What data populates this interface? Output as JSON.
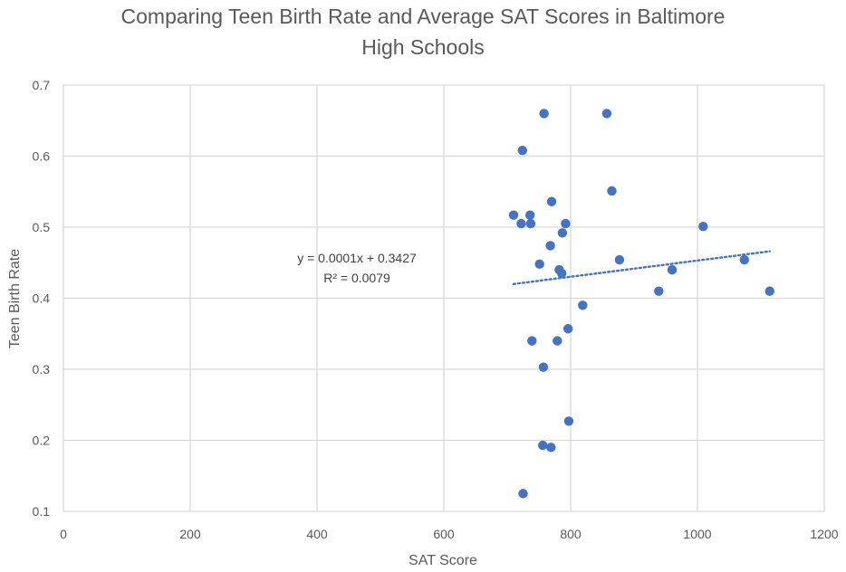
{
  "chart_data": {
    "type": "scatter",
    "title_lines": [
      "Comparing Teen Birth Rate and Average SAT Scores in Baltimore",
      "High Schools"
    ],
    "xlabel": "SAT Score",
    "ylabel": "Teen Birth Rate",
    "xlim": [
      0,
      1200
    ],
    "ylim": [
      0.1,
      0.7
    ],
    "x_ticks": [
      0,
      200,
      400,
      600,
      800,
      1000,
      1200
    ],
    "y_ticks": [
      0.1,
      0.2,
      0.3,
      0.4,
      0.5,
      0.6,
      0.7
    ],
    "x_tick_labels": [
      "0",
      "200",
      "400",
      "600",
      "800",
      "1000",
      "1200"
    ],
    "y_tick_labels": [
      "0.1",
      "0.2",
      "0.3",
      "0.4",
      "0.5",
      "0.6",
      "0.7"
    ],
    "grid": true,
    "marker_color": "#4472C4",
    "trendline_color": "#4472C4",
    "points": [
      {
        "x": 758,
        "y": 0.66
      },
      {
        "x": 857,
        "y": 0.66
      },
      {
        "x": 724,
        "y": 0.608
      },
      {
        "x": 865,
        "y": 0.551
      },
      {
        "x": 770,
        "y": 0.536
      },
      {
        "x": 710,
        "y": 0.517
      },
      {
        "x": 736,
        "y": 0.517
      },
      {
        "x": 722,
        "y": 0.505
      },
      {
        "x": 737,
        "y": 0.505
      },
      {
        "x": 792,
        "y": 0.505
      },
      {
        "x": 1009,
        "y": 0.501
      },
      {
        "x": 787,
        "y": 0.492
      },
      {
        "x": 768,
        "y": 0.474
      },
      {
        "x": 877,
        "y": 0.454
      },
      {
        "x": 1074,
        "y": 0.454
      },
      {
        "x": 751,
        "y": 0.448
      },
      {
        "x": 960,
        "y": 0.44
      },
      {
        "x": 782,
        "y": 0.44
      },
      {
        "x": 786,
        "y": 0.435
      },
      {
        "x": 939,
        "y": 0.41
      },
      {
        "x": 1114,
        "y": 0.41
      },
      {
        "x": 819,
        "y": 0.39
      },
      {
        "x": 796,
        "y": 0.357
      },
      {
        "x": 739,
        "y": 0.34
      },
      {
        "x": 779,
        "y": 0.34
      },
      {
        "x": 757,
        "y": 0.303
      },
      {
        "x": 797,
        "y": 0.227
      },
      {
        "x": 756,
        "y": 0.193
      },
      {
        "x": 769,
        "y": 0.19
      },
      {
        "x": 725,
        "y": 0.125
      }
    ],
    "trendline": {
      "type": "linear",
      "slope": 0.0001,
      "intercept": 0.3427,
      "x_start": 710,
      "x_end": 1114,
      "y_start": 0.42,
      "y_end": 0.466,
      "equation_label": "y = 0.0001x + 0.3427",
      "r2_label": "R² = 0.0079"
    }
  }
}
